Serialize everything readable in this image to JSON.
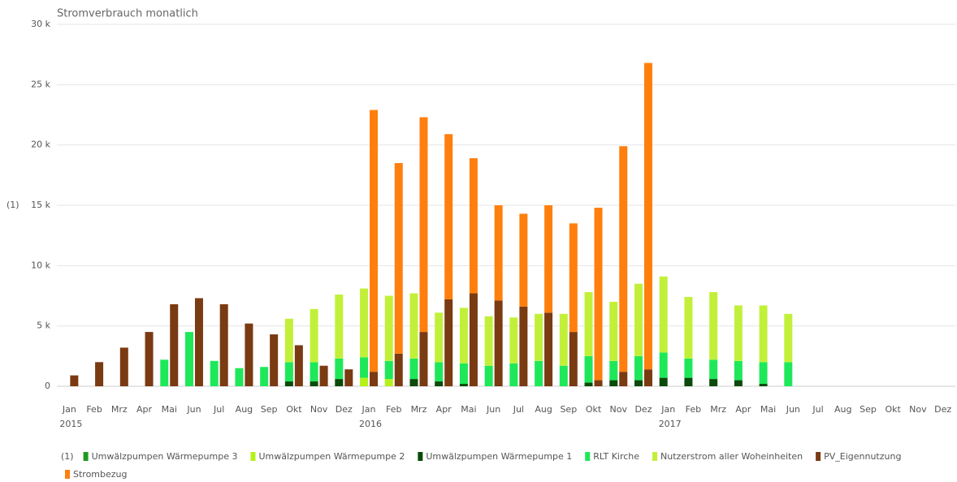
{
  "chart_data": {
    "type": "stacked-bar",
    "title": "Stromverbrauch monatlich",
    "y_label": "(1)",
    "legend_prefix": "(1)",
    "categories": [
      "Jan",
      "Feb",
      "Mrz",
      "Apr",
      "Mai",
      "Jun",
      "Jul",
      "Aug",
      "Sep",
      "Okt",
      "Nov",
      "Dez",
      "Jan",
      "Feb",
      "Mrz",
      "Apr",
      "Mai",
      "Jun",
      "Jul",
      "Aug",
      "Sep",
      "Okt",
      "Nov",
      "Dez",
      "Jan",
      "Feb",
      "Mrz",
      "Apr",
      "Mai",
      "Jun",
      "Jul",
      "Aug",
      "Sep",
      "Okt",
      "Nov",
      "Dez"
    ],
    "years": [
      "2015",
      "2016",
      "2017"
    ],
    "ylim": [
      0,
      30000
    ],
    "yticks": [
      0,
      {
        "value": 5000,
        "label": "5 k"
      },
      {
        "value": 10000,
        "label": "10 k"
      },
      {
        "value": 15000,
        "label": "15 k"
      },
      {
        "value": 20000,
        "label": "20 k"
      },
      {
        "value": 25000,
        "label": "25 k"
      },
      {
        "value": 30000,
        "label": "30 k"
      }
    ],
    "grid": true,
    "series": [
      {
        "name": "Umwälzpumpen Wärmepumpe 3",
        "color": "#1f9a1f",
        "stack": "a",
        "values": [
          null,
          null,
          null,
          null,
          null,
          null,
          null,
          null,
          null,
          null,
          null,
          null,
          null,
          null,
          null,
          null,
          null,
          null,
          null,
          null,
          null,
          null,
          null,
          null,
          null,
          null,
          null,
          null,
          null,
          null,
          null,
          null,
          null,
          null,
          null,
          null
        ]
      },
      {
        "name": "Umwälzpumpen Wärmepumpe 2",
        "color": "#b5f21a",
        "stack": "a",
        "values": [
          null,
          null,
          null,
          null,
          null,
          null,
          null,
          null,
          null,
          null,
          null,
          null,
          700,
          600,
          null,
          null,
          null,
          null,
          null,
          null,
          null,
          null,
          null,
          null,
          null,
          null,
          null,
          null,
          null,
          null,
          null,
          null,
          null,
          null,
          null,
          null
        ]
      },
      {
        "name": "Umwälzpumpen Wärmepumpe 1",
        "color": "#0b4a0b",
        "stack": "a",
        "values": [
          null,
          null,
          null,
          null,
          null,
          null,
          null,
          null,
          null,
          400,
          400,
          600,
          null,
          null,
          600,
          400,
          200,
          null,
          null,
          null,
          null,
          300,
          500,
          500,
          700,
          700,
          600,
          500,
          200,
          null,
          null,
          null,
          null,
          null,
          null,
          null
        ]
      },
      {
        "name": "RLT Kirche",
        "color": "#1ee85a",
        "stack": "a",
        "values": [
          null,
          null,
          null,
          null,
          2200,
          4500,
          2100,
          1500,
          1600,
          1600,
          1600,
          1700,
          1700,
          1500,
          1700,
          1600,
          1700,
          1700,
          1900,
          2100,
          1700,
          2200,
          1600,
          2000,
          2100,
          1600,
          1600,
          1600,
          1800,
          2000,
          null,
          null,
          null,
          null,
          null,
          null
        ]
      },
      {
        "name": "Nutzerstrom aller Woheinheiten",
        "color": "#c2f03a",
        "stack": "a",
        "values": [
          null,
          null,
          null,
          null,
          null,
          null,
          null,
          null,
          null,
          3600,
          4400,
          5300,
          5700,
          5400,
          5400,
          4100,
          4600,
          4100,
          3800,
          3900,
          4300,
          5300,
          4900,
          6000,
          6300,
          5100,
          5600,
          4600,
          4700,
          4000,
          null,
          null,
          null,
          null,
          null,
          null
        ]
      },
      {
        "name": "PV_Eigennutzung",
        "color": "#7a3a12",
        "stack": "b",
        "values": [
          900,
          2000,
          3200,
          4500,
          6800,
          7300,
          6800,
          5200,
          4300,
          3400,
          1700,
          1400,
          1200,
          2700,
          4500,
          7200,
          7700,
          7100,
          6600,
          6100,
          4500,
          500,
          1200,
          1400,
          null,
          null,
          null,
          null,
          null,
          null,
          null,
          null,
          null,
          null,
          null,
          null
        ]
      },
      {
        "name": "Strombezug",
        "color": "#ff7f0e",
        "stack": "b",
        "values": [
          null,
          null,
          null,
          null,
          null,
          null,
          null,
          null,
          null,
          null,
          null,
          null,
          21700,
          15800,
          17800,
          13700,
          11200,
          7900,
          7700,
          8900,
          9000,
          14300,
          18700,
          25400,
          null,
          null,
          null,
          null,
          null,
          null,
          null,
          null,
          null,
          null,
          null,
          null
        ]
      }
    ]
  }
}
